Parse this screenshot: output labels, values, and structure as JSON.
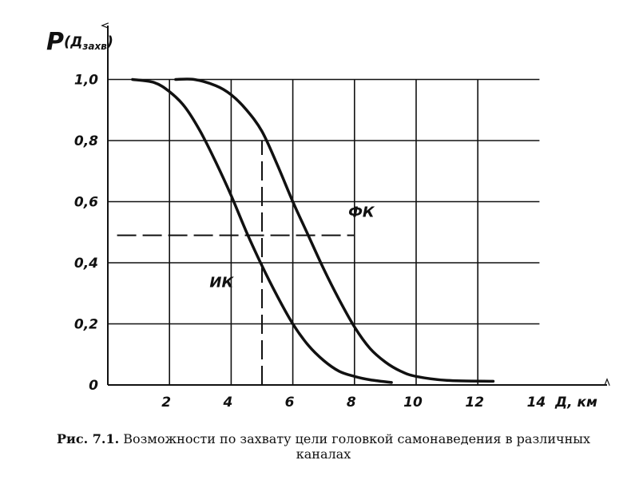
{
  "chart_data": {
    "type": "line",
    "ylabel_main": "P",
    "ylabel_paren_open": "(",
    "ylabel_base": "Д",
    "ylabel_sub": "захв",
    "ylabel_paren_close": ")",
    "xlabel": "Д, км",
    "xlim": [
      0,
      14
    ],
    "ylim": [
      0,
      1.0
    ],
    "x_ticks": [
      "2",
      "4",
      "6",
      "8",
      "10",
      "12",
      "14"
    ],
    "x_tick_values": [
      2,
      4,
      6,
      8,
      10,
      12,
      14
    ],
    "y_ticks": [
      "0",
      "0,2",
      "0,4",
      "0,6",
      "0,8",
      "1,0"
    ],
    "y_tick_values": [
      0,
      0.2,
      0.4,
      0.6,
      0.8,
      1.0
    ],
    "grid": true,
    "series": [
      {
        "name": "ИК",
        "x": [
          0.8,
          1.5,
          2.0,
          2.5,
          3.0,
          3.5,
          4.0,
          4.5,
          5.0,
          5.5,
          6.0,
          6.5,
          7.0,
          7.5,
          8.0,
          8.5,
          9.2
        ],
        "y": [
          1.0,
          0.99,
          0.96,
          0.91,
          0.83,
          0.73,
          0.62,
          0.5,
          0.39,
          0.29,
          0.2,
          0.13,
          0.08,
          0.045,
          0.028,
          0.017,
          0.008
        ]
      },
      {
        "name": "ФК",
        "x": [
          2.2,
          2.8,
          3.5,
          4.0,
          4.5,
          5.0,
          5.5,
          6.0,
          6.5,
          7.0,
          7.5,
          8.0,
          8.5,
          9.0,
          9.5,
          10.0,
          11.0,
          12.5
        ],
        "y": [
          1.0,
          1.0,
          0.98,
          0.95,
          0.9,
          0.83,
          0.72,
          0.6,
          0.49,
          0.38,
          0.28,
          0.19,
          0.12,
          0.075,
          0.045,
          0.028,
          0.015,
          0.012
        ]
      }
    ],
    "annotations": {
      "horizontal_dashed_y": 0.49,
      "horizontal_dashed_x_range": [
        0.3,
        8.0
      ],
      "vertical_dashed_x": 5.0,
      "vertical_dashed_y_range": [
        0,
        0.8
      ]
    },
    "curve_labels": [
      {
        "text": "ФК",
        "x": 7.8,
        "y": 0.55
      },
      {
        "text": "ИК",
        "x": 3.3,
        "y": 0.32
      }
    ]
  },
  "caption": {
    "prefix": "Рис. 7.1.",
    "text": " Возможности по захвату цели головкой самонаведения в различных каналах"
  }
}
